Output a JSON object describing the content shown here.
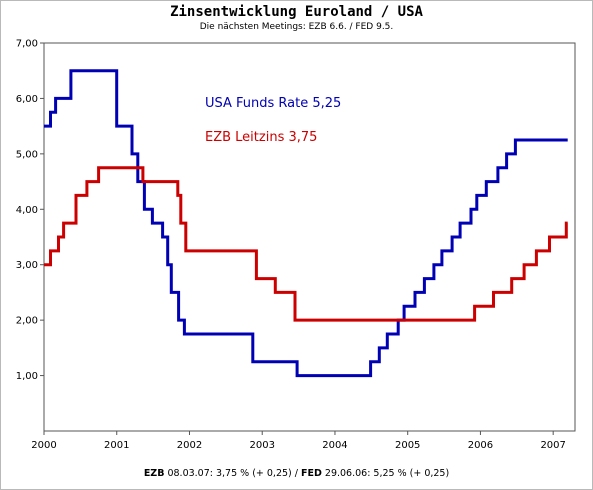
{
  "chart_data": {
    "type": "line",
    "title": "Zinsentwicklung Euroland / USA",
    "subtitle": "Die nächsten Meetings: EZB 6.6. / FED 9.5.",
    "xlabel": "",
    "ylabel": "",
    "xlim": [
      2000.0,
      2007.3
    ],
    "ylim": [
      0,
      7
    ],
    "x_ticks": [
      "2000",
      "2001",
      "2002",
      "2003",
      "2004",
      "2005",
      "2006",
      "2007"
    ],
    "y_ticks": [
      "1,00",
      "2,00",
      "3,00",
      "4,00",
      "5,00",
      "6,00",
      "7,00"
    ],
    "grid": false,
    "step": true,
    "series": [
      {
        "name": "USA Funds Rate 5,25",
        "color": "#0000b4",
        "points": [
          [
            2000.0,
            5.5
          ],
          [
            2000.09,
            5.75
          ],
          [
            2000.16,
            6.0
          ],
          [
            2000.37,
            6.5
          ],
          [
            2001.0,
            5.5
          ],
          [
            2001.21,
            5.0
          ],
          [
            2001.29,
            4.5
          ],
          [
            2001.38,
            4.0
          ],
          [
            2001.49,
            3.75
          ],
          [
            2001.63,
            3.5
          ],
          [
            2001.7,
            3.0
          ],
          [
            2001.75,
            2.5
          ],
          [
            2001.85,
            2.0
          ],
          [
            2001.93,
            1.75
          ],
          [
            2002.87,
            1.25
          ],
          [
            2003.48,
            1.0
          ],
          [
            2004.49,
            1.25
          ],
          [
            2004.61,
            1.5
          ],
          [
            2004.72,
            1.75
          ],
          [
            2004.87,
            2.0
          ],
          [
            2004.95,
            2.25
          ],
          [
            2005.1,
            2.5
          ],
          [
            2005.23,
            2.75
          ],
          [
            2005.36,
            3.0
          ],
          [
            2005.47,
            3.25
          ],
          [
            2005.61,
            3.5
          ],
          [
            2005.72,
            3.75
          ],
          [
            2005.87,
            4.0
          ],
          [
            2005.95,
            4.25
          ],
          [
            2006.08,
            4.5
          ],
          [
            2006.24,
            4.75
          ],
          [
            2006.36,
            5.0
          ],
          [
            2006.48,
            5.25
          ],
          [
            2007.2,
            5.25
          ]
        ]
      },
      {
        "name": "EZB Leitzins 3,75",
        "color": "#cc0000",
        "points": [
          [
            2000.0,
            3.0
          ],
          [
            2000.09,
            3.25
          ],
          [
            2000.2,
            3.5
          ],
          [
            2000.27,
            3.75
          ],
          [
            2000.44,
            4.25
          ],
          [
            2000.59,
            4.5
          ],
          [
            2000.75,
            4.75
          ],
          [
            2001.36,
            4.5
          ],
          [
            2001.84,
            4.25
          ],
          [
            2001.88,
            3.75
          ],
          [
            2001.95,
            3.25
          ],
          [
            2002.92,
            2.75
          ],
          [
            2003.18,
            2.5
          ],
          [
            2003.45,
            2.0
          ],
          [
            2005.92,
            2.25
          ],
          [
            2006.18,
            2.5
          ],
          [
            2006.43,
            2.75
          ],
          [
            2006.6,
            3.0
          ],
          [
            2006.77,
            3.25
          ],
          [
            2006.95,
            3.5
          ],
          [
            2007.18,
            3.75
          ],
          [
            2007.2,
            3.75
          ]
        ]
      }
    ]
  },
  "footer": {
    "ezb_label": "EZB",
    "ezb_text": " 08.03.07: 3,75 % (+ 0,25) / ",
    "fed_label": "FED",
    "fed_text": " 29.06.06: 5,25 % (+ 0,25)"
  }
}
